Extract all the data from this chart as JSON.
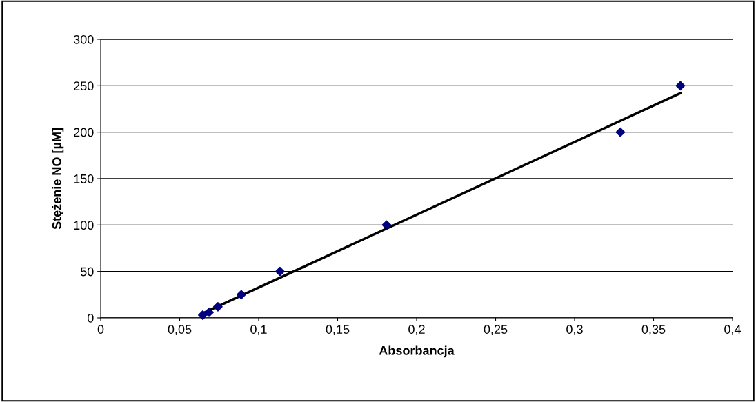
{
  "chart_data": {
    "type": "scatter",
    "xlabel": "Absorbancja",
    "ylabel": "Stężenie NO [µM]",
    "series": [
      {
        "color": "#000080",
        "marker": "diamond",
        "x": [
          0.0646,
          0.0686,
          0.0742,
          0.089,
          0.1135,
          0.181,
          0.329,
          0.367
        ],
        "values": [
          3,
          6,
          12,
          25,
          50,
          100,
          200,
          250
        ]
      },
      {
        "type": "line",
        "color": "#000000",
        "marker": "none",
        "line_style": "solid",
        "x": [
          0.066,
          0.367
        ],
        "values": [
          6,
          242
        ]
      }
    ],
    "xlim": [
      0,
      0.4
    ],
    "xticks": [
      0,
      {
        "value": 0.05,
        "label": "0,05"
      },
      {
        "value": 0.1,
        "label": "0,1"
      },
      {
        "value": 0.15,
        "label": "0,15"
      },
      {
        "value": 0.2,
        "label": "0,2"
      },
      {
        "value": 0.25,
        "label": "0,25"
      },
      {
        "value": 0.3,
        "label": "0,3"
      },
      {
        "value": 0.35,
        "label": "0,35"
      },
      {
        "value": 0.4,
        "label": "0,4"
      }
    ],
    "ylim": [
      0,
      300
    ],
    "yticks": [
      0,
      50,
      100,
      150,
      200,
      250,
      300
    ],
    "grid": "y",
    "legend": false
  }
}
